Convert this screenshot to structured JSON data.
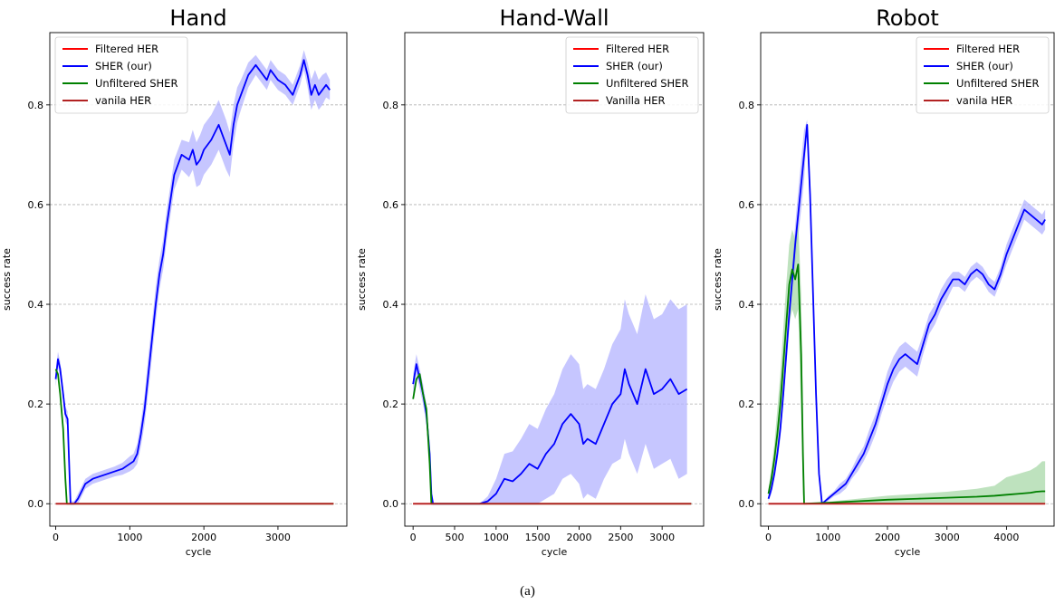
{
  "figure_caption": "(a)",
  "chart_data": [
    {
      "type": "line",
      "title": "Hand",
      "xlabel": "cycle",
      "ylabel": "success rate",
      "xlim": [
        -80,
        3930
      ],
      "ylim": [
        -0.045,
        0.945
      ],
      "xticks": [
        0,
        1000,
        2000,
        3000
      ],
      "yticks": [
        0.0,
        0.2,
        0.4,
        0.6,
        0.8
      ],
      "ytick_labels": [
        "0.0",
        "0.2",
        "0.4",
        "0.6",
        "0.8"
      ],
      "grid": "horizontal-dashed",
      "legend_position": "top-left",
      "series": [
        {
          "name": "Filtered HER",
          "color": "#ff0000",
          "x": [
            0,
            3750
          ],
          "y": [
            0,
            0
          ]
        },
        {
          "name": "SHER (our)",
          "color": "#0000ff",
          "band_color": "#b3b3ff",
          "x": [
            0,
            30,
            60,
            100,
            130,
            160,
            200,
            250,
            300,
            400,
            500,
            600,
            700,
            800,
            900,
            1000,
            1050,
            1100,
            1150,
            1200,
            1250,
            1300,
            1350,
            1400,
            1450,
            1500,
            1550,
            1600,
            1700,
            1800,
            1850,
            1900,
            1950,
            2000,
            2100,
            2200,
            2300,
            2350,
            2400,
            2450,
            2500,
            2600,
            2700,
            2800,
            2850,
            2900,
            3000,
            3100,
            3200,
            3250,
            3300,
            3350,
            3400,
            3450,
            3500,
            3550,
            3600,
            3650,
            3700
          ],
          "y": [
            0.25,
            0.29,
            0.27,
            0.22,
            0.18,
            0.17,
            0.0,
            0.0,
            0.01,
            0.04,
            0.05,
            0.055,
            0.06,
            0.065,
            0.07,
            0.08,
            0.085,
            0.1,
            0.14,
            0.19,
            0.26,
            0.33,
            0.4,
            0.46,
            0.5,
            0.56,
            0.61,
            0.66,
            0.7,
            0.69,
            0.71,
            0.68,
            0.69,
            0.71,
            0.73,
            0.76,
            0.72,
            0.7,
            0.76,
            0.8,
            0.82,
            0.86,
            0.88,
            0.86,
            0.85,
            0.87,
            0.85,
            0.84,
            0.82,
            0.84,
            0.86,
            0.89,
            0.86,
            0.82,
            0.84,
            0.82,
            0.83,
            0.84,
            0.83
          ],
          "band": [
            0.015,
            0.015,
            0.015,
            0.015,
            0.015,
            0.015,
            0.005,
            0.005,
            0.01,
            0.01,
            0.01,
            0.01,
            0.01,
            0.01,
            0.012,
            0.015,
            0.015,
            0.02,
            0.025,
            0.03,
            0.035,
            0.035,
            0.035,
            0.03,
            0.03,
            0.03,
            0.03,
            0.03,
            0.03,
            0.035,
            0.04,
            0.045,
            0.05,
            0.05,
            0.05,
            0.05,
            0.05,
            0.045,
            0.04,
            0.035,
            0.03,
            0.025,
            0.02,
            0.02,
            0.02,
            0.02,
            0.02,
            0.02,
            0.02,
            0.02,
            0.02,
            0.02,
            0.025,
            0.03,
            0.03,
            0.03,
            0.03,
            0.025,
            0.02
          ]
        },
        {
          "name": "Unfiltered SHER",
          "color": "#008000",
          "x": [
            0,
            30,
            60,
            100,
            130,
            150,
            3750
          ],
          "y": [
            0.27,
            0.26,
            0.22,
            0.15,
            0.05,
            0.0,
            0.0
          ]
        },
        {
          "name": "vanila HER",
          "color": "#b22222",
          "x": [
            0,
            3750
          ],
          "y": [
            0,
            0
          ]
        }
      ]
    },
    {
      "type": "line",
      "title": "Hand-Wall",
      "xlabel": "cycle",
      "ylabel": "success rate",
      "xlim": [
        -100,
        3500
      ],
      "ylim": [
        -0.045,
        0.945
      ],
      "xticks": [
        0,
        500,
        1000,
        1500,
        2000,
        2500,
        3000
      ],
      "yticks": [
        0.0,
        0.2,
        0.4,
        0.6,
        0.8
      ],
      "ytick_labels": [
        "0.0",
        "0.2",
        "0.4",
        "0.6",
        "0.8"
      ],
      "grid": "horizontal-dashed",
      "legend_position": "top-right",
      "series": [
        {
          "name": "Filtered HER",
          "color": "#ff0000",
          "x": [
            0,
            3350
          ],
          "y": [
            0,
            0
          ]
        },
        {
          "name": "SHER (our)",
          "color": "#0000ff",
          "band_color": "#b3b3ff",
          "x": [
            0,
            40,
            80,
            120,
            160,
            200,
            220,
            240,
            260,
            800,
            900,
            1000,
            1100,
            1200,
            1300,
            1400,
            1500,
            1600,
            1700,
            1800,
            1900,
            2000,
            2050,
            2100,
            2200,
            2300,
            2400,
            2500,
            2550,
            2600,
            2700,
            2800,
            2900,
            3000,
            3100,
            3200,
            3300
          ],
          "y": [
            0.24,
            0.28,
            0.25,
            0.22,
            0.18,
            0.1,
            0.02,
            0.0,
            0.0,
            0.0,
            0.005,
            0.02,
            0.05,
            0.045,
            0.06,
            0.08,
            0.07,
            0.1,
            0.12,
            0.16,
            0.18,
            0.16,
            0.12,
            0.13,
            0.12,
            0.16,
            0.2,
            0.22,
            0.27,
            0.24,
            0.2,
            0.27,
            0.22,
            0.23,
            0.25,
            0.22,
            0.23
          ],
          "band": [
            0.02,
            0.02,
            0.02,
            0.02,
            0.02,
            0.02,
            0.01,
            0.0,
            0.0,
            0.0,
            0.01,
            0.03,
            0.05,
            0.06,
            0.07,
            0.08,
            0.08,
            0.09,
            0.1,
            0.11,
            0.12,
            0.12,
            0.11,
            0.11,
            0.11,
            0.11,
            0.12,
            0.13,
            0.14,
            0.14,
            0.14,
            0.15,
            0.15,
            0.15,
            0.16,
            0.17,
            0.17
          ]
        },
        {
          "name": "Unfiltered SHER",
          "color": "#008000",
          "x": [
            0,
            40,
            80,
            120,
            160,
            200,
            220,
            3350
          ],
          "y": [
            0.21,
            0.25,
            0.26,
            0.22,
            0.19,
            0.08,
            0.0,
            0.0
          ]
        },
        {
          "name": "Vanilla HER",
          "color": "#b22222",
          "x": [
            0,
            3350
          ],
          "y": [
            0,
            0
          ]
        }
      ]
    },
    {
      "type": "line",
      "title": "Robot",
      "xlabel": "cycle",
      "ylabel": "success rate",
      "xlim": [
        -130,
        4800
      ],
      "ylim": [
        -0.045,
        0.945
      ],
      "xticks": [
        0,
        1000,
        2000,
        3000,
        4000
      ],
      "yticks": [
        0.0,
        0.2,
        0.4,
        0.6,
        0.8
      ],
      "ytick_labels": [
        "0.0",
        "0.2",
        "0.4",
        "0.6",
        "0.8"
      ],
      "grid": "horizontal-dashed",
      "legend_position": "top-right",
      "series": [
        {
          "name": "Filtered HER",
          "color": "#ff0000",
          "x": [
            0,
            4650
          ],
          "y": [
            0,
            0
          ]
        },
        {
          "name": "SHER (our)",
          "color": "#0000ff",
          "band_color": "#b3b3ff",
          "x": [
            0,
            50,
            100,
            150,
            200,
            250,
            300,
            350,
            400,
            450,
            500,
            550,
            600,
            650,
            700,
            750,
            800,
            850,
            900,
            1000,
            1100,
            1200,
            1300,
            1400,
            1500,
            1600,
            1700,
            1800,
            1900,
            2000,
            2100,
            2200,
            2300,
            2400,
            2500,
            2600,
            2700,
            2800,
            2900,
            3000,
            3100,
            3200,
            3300,
            3400,
            3500,
            3600,
            3700,
            3800,
            3900,
            4000,
            4100,
            4200,
            4300,
            4400,
            4500,
            4600,
            4650
          ],
          "y": [
            0.01,
            0.03,
            0.06,
            0.1,
            0.15,
            0.22,
            0.3,
            0.38,
            0.45,
            0.52,
            0.58,
            0.64,
            0.7,
            0.76,
            0.62,
            0.42,
            0.22,
            0.06,
            0.0,
            0.01,
            0.02,
            0.03,
            0.04,
            0.06,
            0.08,
            0.1,
            0.13,
            0.16,
            0.2,
            0.24,
            0.27,
            0.29,
            0.3,
            0.29,
            0.28,
            0.32,
            0.36,
            0.38,
            0.41,
            0.43,
            0.45,
            0.45,
            0.44,
            0.46,
            0.47,
            0.46,
            0.44,
            0.43,
            0.46,
            0.5,
            0.53,
            0.56,
            0.59,
            0.58,
            0.57,
            0.56,
            0.57
          ],
          "band": [
            0.005,
            0.01,
            0.01,
            0.015,
            0.02,
            0.02,
            0.025,
            0.03,
            0.035,
            0.04,
            0.045,
            0.05,
            0.05,
            0.01,
            0.03,
            0.03,
            0.02,
            0.01,
            0.0,
            0.005,
            0.005,
            0.01,
            0.01,
            0.01,
            0.015,
            0.015,
            0.02,
            0.02,
            0.02,
            0.025,
            0.025,
            0.025,
            0.025,
            0.025,
            0.025,
            0.02,
            0.02,
            0.02,
            0.02,
            0.02,
            0.015,
            0.015,
            0.015,
            0.015,
            0.015,
            0.015,
            0.015,
            0.015,
            0.015,
            0.02,
            0.02,
            0.02,
            0.02,
            0.02,
            0.02,
            0.02,
            0.02
          ]
        },
        {
          "name": "Unfiltered SHER",
          "color": "#008000",
          "band_color": "#a8d8a8",
          "x": [
            0,
            50,
            100,
            150,
            200,
            250,
            300,
            350,
            400,
            450,
            500,
            550,
            580,
            600,
            1000,
            1500,
            2000,
            2500,
            3000,
            3500,
            3800,
            4000,
            4200,
            4400,
            4500,
            4600,
            4650
          ],
          "y": [
            0.02,
            0.05,
            0.09,
            0.14,
            0.2,
            0.28,
            0.36,
            0.44,
            0.47,
            0.45,
            0.48,
            0.3,
            0.1,
            0.0,
            0.002,
            0.005,
            0.008,
            0.01,
            0.012,
            0.014,
            0.016,
            0.018,
            0.02,
            0.022,
            0.024,
            0.025,
            0.025
          ],
          "band": [
            0.01,
            0.02,
            0.03,
            0.05,
            0.06,
            0.07,
            0.08,
            0.08,
            0.08,
            0.08,
            0.09,
            0.12,
            0.08,
            0.0,
            0.002,
            0.005,
            0.008,
            0.01,
            0.012,
            0.016,
            0.02,
            0.035,
            0.04,
            0.045,
            0.05,
            0.06,
            0.06
          ]
        },
        {
          "name": "vanila HER",
          "color": "#b22222",
          "x": [
            0,
            4650
          ],
          "y": [
            0,
            0
          ]
        }
      ]
    }
  ]
}
